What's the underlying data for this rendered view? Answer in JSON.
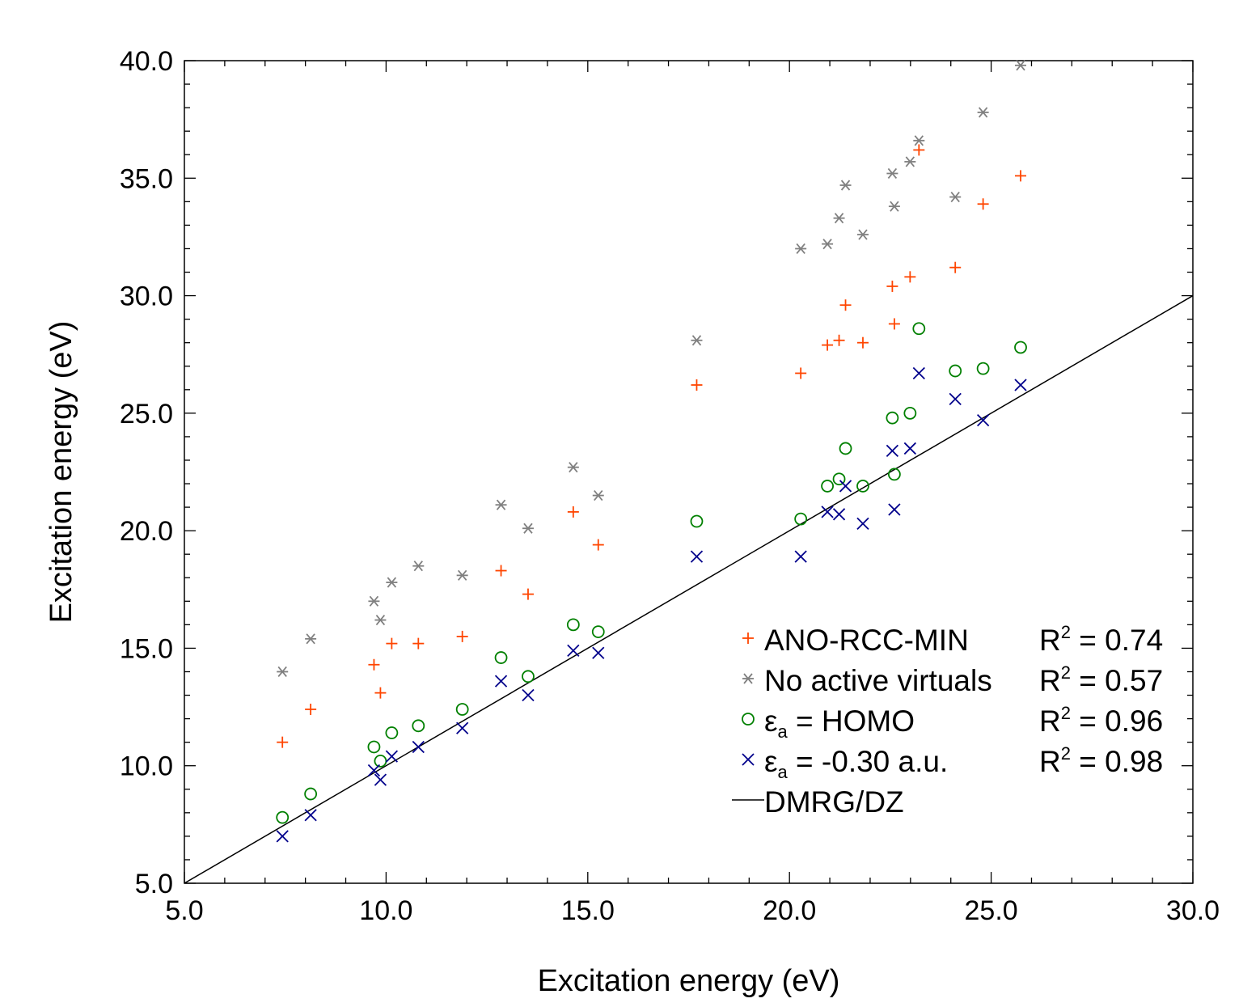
{
  "chart_data": {
    "type": "scatter",
    "title": "",
    "xlabel": "Excitation energy (eV)",
    "ylabel": "Excitation energy (eV)",
    "xlim": [
      5.0,
      30.0
    ],
    "ylim": [
      5.0,
      40.0
    ],
    "xticks": [
      5.0,
      10.0,
      15.0,
      20.0,
      25.0,
      30.0
    ],
    "yticks": [
      5.0,
      10.0,
      15.0,
      20.0,
      25.0,
      30.0,
      35.0,
      40.0
    ],
    "xtick_labels": [
      "5.0",
      "10.0",
      "15.0",
      "20.0",
      "25.0",
      "30.0"
    ],
    "ytick_labels": [
      "5.0",
      "10.0",
      "15.0",
      "20.0",
      "25.0",
      "30.0",
      "35.0",
      "40.0"
    ],
    "x_minor_step": 1.0,
    "y_minor_step": 1.0,
    "grid": false,
    "legend_position": "bottom-right",
    "x": [
      7.43,
      8.13,
      9.7,
      9.86,
      10.14,
      10.8,
      11.89,
      12.85,
      13.52,
      14.64,
      15.26,
      17.7,
      20.28,
      20.94,
      21.23,
      21.39,
      21.82,
      22.55,
      22.6,
      22.99,
      23.21,
      24.11,
      24.8,
      25.73
    ],
    "series": [
      {
        "name": "ANO-RCC-MIN",
        "marker": "plus",
        "color": "#ff4500",
        "r2_label": "R",
        "r2_sup": "2",
        "r2_value": " = 0.74",
        "y": [
          11.0,
          12.4,
          14.3,
          13.1,
          15.2,
          15.2,
          15.5,
          18.3,
          17.3,
          20.8,
          19.4,
          26.2,
          26.7,
          27.9,
          28.1,
          29.6,
          28.0,
          30.4,
          28.8,
          30.8,
          36.2,
          31.2,
          33.9,
          35.1
        ]
      },
      {
        "name": "No active virtuals",
        "marker": "asterisk",
        "color": "#808080",
        "r2_label": "R",
        "r2_sup": "2",
        "r2_value": " = 0.57",
        "y": [
          14.0,
          15.4,
          17.0,
          16.2,
          17.8,
          18.5,
          18.1,
          21.1,
          20.1,
          22.7,
          21.5,
          28.1,
          32.0,
          32.2,
          33.3,
          34.7,
          32.6,
          35.2,
          33.8,
          35.7,
          36.6,
          34.2,
          37.8,
          39.8
        ]
      },
      {
        "name": "ε",
        "name_sub": "a",
        "name_rest": " = HOMO",
        "marker": "circle",
        "color": "#008000",
        "r2_label": "R",
        "r2_sup": "2",
        "r2_value": " = 0.96",
        "y": [
          7.8,
          8.8,
          10.8,
          10.2,
          11.4,
          11.7,
          12.4,
          14.6,
          13.8,
          16.0,
          15.7,
          20.4,
          20.5,
          21.9,
          22.2,
          23.5,
          21.9,
          24.8,
          22.4,
          25.0,
          28.6,
          26.8,
          26.9,
          27.8
        ]
      },
      {
        "name": "ε",
        "name_sub": "a",
        "name_rest": " = -0.30 a.u.",
        "marker": "cross",
        "color": "#00008b",
        "r2_label": "R",
        "r2_sup": "2",
        "r2_value": " = 0.98",
        "y": [
          7.0,
          7.9,
          9.8,
          9.4,
          10.4,
          10.8,
          11.6,
          13.6,
          13.0,
          14.9,
          14.8,
          18.9,
          18.9,
          20.8,
          20.7,
          21.9,
          20.3,
          23.4,
          20.9,
          23.5,
          26.7,
          25.6,
          24.7,
          26.2
        ]
      }
    ],
    "reference_line": {
      "name": "DMRG/DZ",
      "color": "#000000",
      "x": [
        5.0,
        30.0
      ],
      "y": [
        5.0,
        30.0
      ]
    }
  }
}
